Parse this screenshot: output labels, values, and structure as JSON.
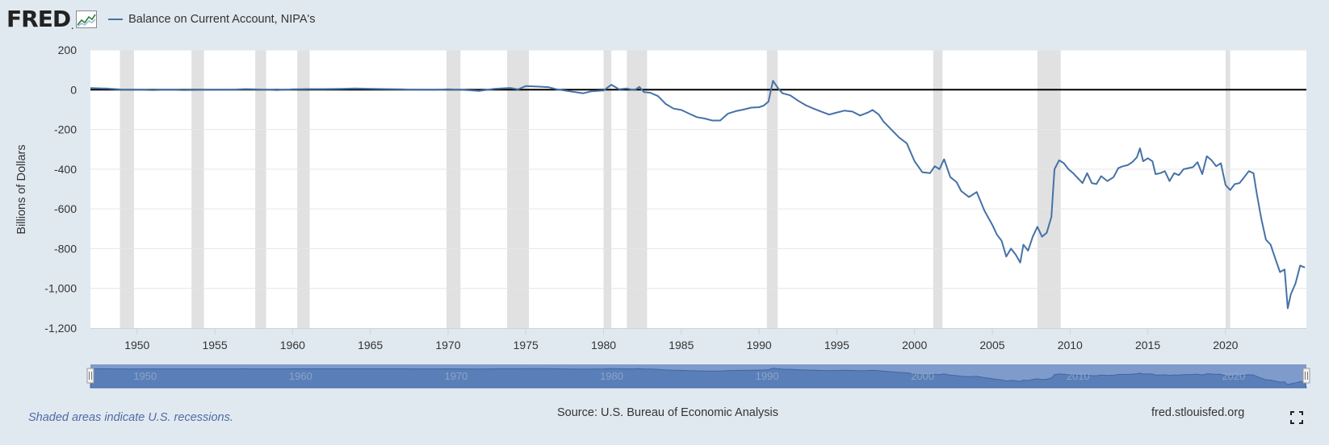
{
  "header": {
    "logo_text": "FRED",
    "logo_mark": ".",
    "legend_label": "Balance on Current Account, NIPA's"
  },
  "chart_data": {
    "type": "line",
    "title": "",
    "xlabel": "",
    "ylabel": "Billions of Dollars",
    "xlim": [
      1947.0,
      2022.75
    ],
    "ylim": [
      -1200,
      200
    ],
    "y_ticks": [
      200,
      0,
      -200,
      -400,
      -600,
      -800,
      -1000,
      -1200
    ],
    "y_tick_labels": [
      "200",
      "0",
      "-200",
      "-400",
      "-600",
      "-800",
      "-1,000",
      "-1,200"
    ],
    "x_ticks": [
      1950,
      1955,
      1960,
      1965,
      1970,
      1975,
      1980,
      1985,
      1990,
      1995,
      2000,
      2005,
      2010,
      2015,
      2020
    ],
    "x_tick_labels": [
      "1950",
      "1955",
      "1960",
      "1965",
      "1970",
      "1975",
      "1980",
      "1985",
      "1990",
      "1995",
      "2000",
      "2005",
      "2010",
      "2015",
      "2020"
    ],
    "grid": "horizontal",
    "zero_line": true,
    "line_color": "#4572a7",
    "recessions": [
      [
        1948.9,
        1949.8
      ],
      [
        1953.5,
        1954.3
      ],
      [
        1957.6,
        1958.3
      ],
      [
        1960.3,
        1961.1
      ],
      [
        1969.9,
        1970.8
      ],
      [
        1973.8,
        1975.2
      ],
      [
        1980.0,
        1980.5
      ],
      [
        1981.5,
        1982.8
      ],
      [
        1990.5,
        1991.2
      ],
      [
        2001.2,
        2001.8
      ],
      [
        2007.9,
        2009.4
      ],
      [
        2020.0,
        2020.3
      ]
    ],
    "series": [
      {
        "name": "Balance on Current Account, NIPA's",
        "points": [
          [
            1947.0,
            8
          ],
          [
            1948.0,
            6
          ],
          [
            1949.0,
            1
          ],
          [
            1950.0,
            0
          ],
          [
            1951.0,
            -2
          ],
          [
            1952.0,
            0
          ],
          [
            1953.0,
            -2
          ],
          [
            1954.0,
            -1
          ],
          [
            1955.0,
            -1
          ],
          [
            1956.0,
            0
          ],
          [
            1957.0,
            3
          ],
          [
            1958.0,
            1
          ],
          [
            1959.0,
            -2
          ],
          [
            1960.0,
            2
          ],
          [
            1961.0,
            3
          ],
          [
            1962.0,
            3
          ],
          [
            1963.0,
            4
          ],
          [
            1964.0,
            6
          ],
          [
            1965.0,
            5
          ],
          [
            1966.0,
            3
          ],
          [
            1967.0,
            2
          ],
          [
            1968.0,
            0
          ],
          [
            1969.0,
            -1
          ],
          [
            1970.0,
            2
          ],
          [
            1971.0,
            -1
          ],
          [
            1972.0,
            -6
          ],
          [
            1973.0,
            5
          ],
          [
            1974.0,
            9
          ],
          [
            1974.5,
            2
          ],
          [
            1975.0,
            18
          ],
          [
            1976.0,
            15
          ],
          [
            1976.5,
            12
          ],
          [
            1977.0,
            2
          ],
          [
            1978.0,
            -10
          ],
          [
            1978.7,
            -18
          ],
          [
            1979.2,
            -8
          ],
          [
            1980.0,
            -4
          ],
          [
            1980.5,
            25
          ],
          [
            1981.0,
            2
          ],
          [
            1981.5,
            6
          ],
          [
            1982.0,
            -2
          ],
          [
            1982.3,
            14
          ],
          [
            1982.6,
            -12
          ],
          [
            1983.0,
            -15
          ],
          [
            1983.5,
            -32
          ],
          [
            1984.0,
            -72
          ],
          [
            1984.5,
            -95
          ],
          [
            1985.0,
            -102
          ],
          [
            1985.5,
            -120
          ],
          [
            1986.0,
            -138
          ],
          [
            1986.5,
            -145
          ],
          [
            1987.0,
            -155
          ],
          [
            1987.5,
            -155
          ],
          [
            1988.0,
            -120
          ],
          [
            1988.5,
            -108
          ],
          [
            1989.0,
            -100
          ],
          [
            1989.5,
            -90
          ],
          [
            1990.0,
            -88
          ],
          [
            1990.3,
            -80
          ],
          [
            1990.6,
            -60
          ],
          [
            1990.9,
            45
          ],
          [
            1991.2,
            10
          ],
          [
            1991.5,
            -18
          ],
          [
            1992.0,
            -28
          ],
          [
            1992.5,
            -55
          ],
          [
            1993.0,
            -78
          ],
          [
            1993.5,
            -95
          ],
          [
            1994.0,
            -110
          ],
          [
            1994.5,
            -125
          ],
          [
            1995.0,
            -115
          ],
          [
            1995.5,
            -105
          ],
          [
            1996.0,
            -110
          ],
          [
            1996.5,
            -130
          ],
          [
            1997.0,
            -115
          ],
          [
            1997.3,
            -102
          ],
          [
            1997.7,
            -125
          ],
          [
            1998.0,
            -160
          ],
          [
            1998.5,
            -200
          ],
          [
            1999.0,
            -240
          ],
          [
            1999.5,
            -270
          ],
          [
            2000.0,
            -360
          ],
          [
            2000.5,
            -415
          ],
          [
            2001.0,
            -420
          ],
          [
            2001.3,
            -385
          ],
          [
            2001.6,
            -400
          ],
          [
            2001.9,
            -350
          ],
          [
            2002.3,
            -440
          ],
          [
            2002.7,
            -465
          ],
          [
            2003.0,
            -510
          ],
          [
            2003.5,
            -540
          ],
          [
            2004.0,
            -515
          ],
          [
            2004.5,
            -610
          ],
          [
            2005.0,
            -680
          ],
          [
            2005.3,
            -730
          ],
          [
            2005.6,
            -760
          ],
          [
            2005.9,
            -840
          ],
          [
            2006.2,
            -800
          ],
          [
            2006.5,
            -830
          ],
          [
            2006.8,
            -870
          ],
          [
            2007.0,
            -780
          ],
          [
            2007.3,
            -810
          ],
          [
            2007.6,
            -740
          ],
          [
            2007.9,
            -690
          ],
          [
            2008.2,
            -740
          ],
          [
            2008.5,
            -720
          ],
          [
            2008.8,
            -640
          ],
          [
            2009.0,
            -400
          ],
          [
            2009.3,
            -355
          ],
          [
            2009.6,
            -370
          ],
          [
            2009.9,
            -400
          ],
          [
            2010.2,
            -420
          ],
          [
            2010.5,
            -445
          ],
          [
            2010.8,
            -470
          ],
          [
            2011.1,
            -420
          ],
          [
            2011.4,
            -470
          ],
          [
            2011.7,
            -475
          ],
          [
            2012.0,
            -435
          ],
          [
            2012.4,
            -460
          ],
          [
            2012.8,
            -440
          ],
          [
            2013.1,
            -395
          ],
          [
            2013.4,
            -385
          ],
          [
            2013.7,
            -380
          ],
          [
            2014.0,
            -365
          ],
          [
            2014.3,
            -340
          ],
          [
            2014.5,
            -295
          ],
          [
            2014.7,
            -360
          ],
          [
            2015.0,
            -345
          ],
          [
            2015.3,
            -360
          ],
          [
            2015.5,
            -425
          ],
          [
            2015.8,
            -420
          ],
          [
            2016.1,
            -410
          ],
          [
            2016.4,
            -460
          ],
          [
            2016.7,
            -420
          ],
          [
            2017.0,
            -430
          ],
          [
            2017.3,
            -400
          ],
          [
            2017.6,
            -395
          ],
          [
            2017.9,
            -390
          ],
          [
            2018.2,
            -365
          ],
          [
            2018.5,
            -425
          ],
          [
            2018.8,
            -335
          ],
          [
            2019.1,
            -355
          ],
          [
            2019.4,
            -385
          ],
          [
            2019.7,
            -370
          ],
          [
            2020.0,
            -480
          ],
          [
            2020.3,
            -505
          ],
          [
            2020.6,
            -475
          ],
          [
            2020.9,
            -470
          ],
          [
            2021.2,
            -440
          ],
          [
            2021.5,
            -410
          ],
          [
            2021.8,
            -420
          ],
          [
            2022.0,
            -520
          ],
          [
            2022.3,
            -650
          ],
          [
            2022.6,
            -755
          ],
          [
            2022.9,
            -780
          ],
          [
            2023.2,
            -850
          ],
          [
            2023.5,
            -918
          ],
          [
            2023.8,
            -905
          ],
          [
            2024.0,
            -1100
          ],
          [
            2024.2,
            -1030
          ],
          [
            2024.5,
            -975
          ],
          [
            2024.8,
            -885
          ],
          [
            2025.1,
            -895
          ]
        ]
      }
    ]
  },
  "navigator": {
    "tick_labels": [
      "1950",
      "1960",
      "1970",
      "1980",
      "1990",
      "2000",
      "2010",
      "2020"
    ]
  },
  "footer": {
    "note": "Shaded areas indicate U.S. recessions.",
    "source": "Source: U.S. Bureau of Economic Analysis",
    "site": "fred.stlouisfed.org"
  }
}
